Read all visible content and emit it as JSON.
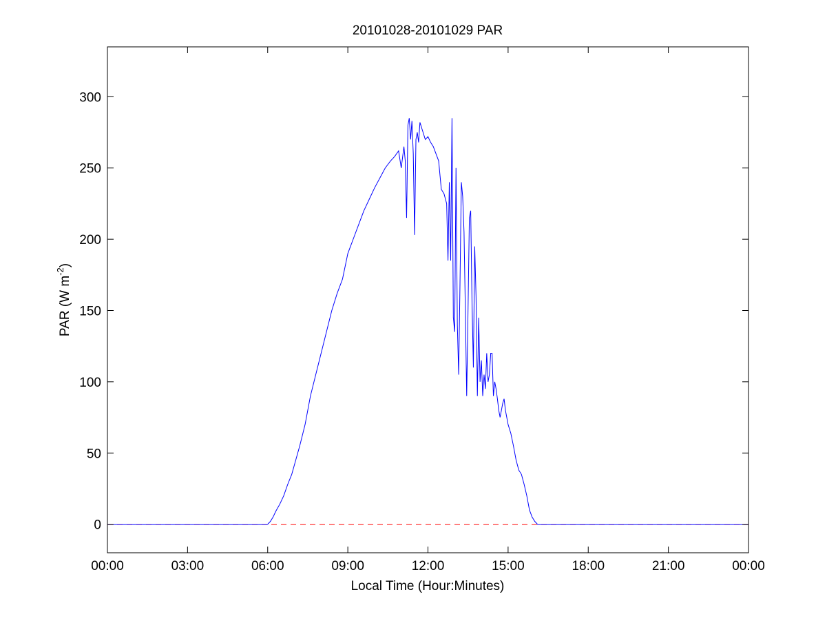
{
  "chart_data": {
    "type": "line",
    "title": "20101028-20101029 PAR",
    "xlabel": "Local Time (Hour:Minutes)",
    "ylabel": {
      "main": "PAR (W m",
      "sup": "-2",
      "close": ")"
    },
    "xlim": [
      0,
      24
    ],
    "ylim": [
      -20,
      335
    ],
    "x_ticks": [
      0,
      3,
      6,
      9,
      12,
      15,
      18,
      21,
      24
    ],
    "x_tick_labels": [
      "00:00",
      "03:00",
      "06:00",
      "09:00",
      "12:00",
      "15:00",
      "18:00",
      "21:00",
      "00:00"
    ],
    "y_ticks": [
      0,
      50,
      100,
      150,
      200,
      250,
      300
    ],
    "y_tick_labels": [
      "0",
      "50",
      "100",
      "150",
      "200",
      "250",
      "300"
    ],
    "grid": false,
    "legend": "none",
    "series": [
      {
        "color": "#0000ff",
        "style": "solid",
        "x": [
          0,
          6.0,
          6.1,
          6.2,
          6.3,
          6.45,
          6.6,
          6.75,
          6.9,
          7.05,
          7.2,
          7.4,
          7.6,
          7.8,
          8.0,
          8.2,
          8.4,
          8.6,
          8.8,
          9.0,
          9.2,
          9.4,
          9.6,
          9.8,
          10.0,
          10.2,
          10.4,
          10.6,
          10.75,
          10.9,
          11.0,
          11.1,
          11.15,
          11.2,
          11.25,
          11.3,
          11.35,
          11.4,
          11.45,
          11.5,
          11.55,
          11.6,
          11.65,
          11.7,
          11.8,
          11.9,
          12.0,
          12.1,
          12.2,
          12.3,
          12.4,
          12.5,
          12.6,
          12.7,
          12.75,
          12.8,
          12.85,
          12.9,
          12.95,
          13.0,
          13.05,
          13.1,
          13.15,
          13.2,
          13.25,
          13.3,
          13.35,
          13.4,
          13.45,
          13.5,
          13.55,
          13.6,
          13.65,
          13.7,
          13.75,
          13.8,
          13.85,
          13.9,
          13.95,
          14.0,
          14.05,
          14.1,
          14.15,
          14.2,
          14.25,
          14.3,
          14.35,
          14.4,
          14.45,
          14.5,
          14.55,
          14.6,
          14.65,
          14.7,
          14.75,
          14.8,
          14.85,
          14.9,
          14.95,
          15.0,
          15.1,
          15.2,
          15.3,
          15.4,
          15.5,
          15.6,
          15.7,
          15.8,
          15.9,
          16.0,
          16.1,
          16.2,
          16.3,
          16.4,
          16.5,
          16.6,
          16.7,
          16.8,
          16.9,
          17.0,
          17.1,
          17.2,
          17.3,
          17.4,
          17.5,
          24
        ],
        "y": [
          0,
          0,
          2,
          5,
          9,
          14,
          20,
          28,
          35,
          45,
          55,
          70,
          90,
          105,
          120,
          135,
          150,
          162,
          172,
          190,
          200,
          210,
          220,
          228,
          236,
          243,
          250,
          255,
          258,
          262,
          250,
          265,
          255,
          215,
          280,
          285,
          270,
          283,
          260,
          203,
          270,
          275,
          268,
          282,
          276,
          270,
          272,
          268,
          265,
          260,
          255,
          235,
          232,
          225,
          185,
          240,
          185,
          285,
          145,
          135,
          250,
          140,
          105,
          170,
          240,
          230,
          205,
          150,
          90,
          150,
          215,
          220,
          155,
          110,
          195,
          160,
          90,
          145,
          100,
          115,
          90,
          105,
          95,
          120,
          100,
          105,
          120,
          120,
          90,
          100,
          95,
          88,
          80,
          75,
          80,
          85,
          88,
          80,
          75,
          70,
          64,
          55,
          45,
          38,
          35,
          28,
          20,
          10,
          5,
          2,
          0,
          0,
          0,
          0,
          0,
          0,
          0,
          0,
          0,
          0,
          0,
          0,
          0,
          0,
          0,
          0
        ]
      },
      {
        "color": "#ff0000",
        "style": "dashed",
        "x": [
          0,
          24
        ],
        "y": [
          0,
          0
        ]
      }
    ]
  }
}
